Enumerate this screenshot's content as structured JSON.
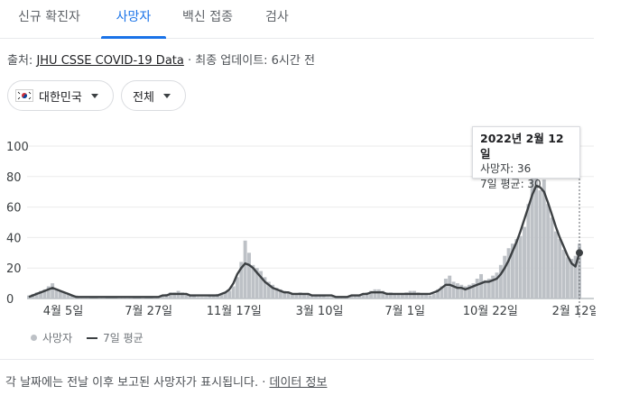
{
  "tabs": [
    {
      "label": "신규 확진자",
      "active": false
    },
    {
      "label": "사망자",
      "active": true
    },
    {
      "label": "백신 접종",
      "active": false
    },
    {
      "label": "검사",
      "active": false
    }
  ],
  "source": {
    "prefix": "출처: ",
    "link": "JHU CSSE COVID-19 Data",
    "suffix": " · 최종 업데이트: 6시간 전"
  },
  "filters": {
    "country": "대한민국",
    "scope": "전체"
  },
  "tooltip": {
    "date": "2022년 2월 12일",
    "deaths": "사망자: 36",
    "avg": "7일 평균: 30"
  },
  "legend": {
    "deaths": "사망자",
    "avg": "7일 평균"
  },
  "footer": {
    "text": "각 날짜에는 전날 이후 보고된 사망자가 표시됩니다. · ",
    "link": "데이터 정보"
  },
  "colors": {
    "accent": "#1a73e8",
    "bars": "#bdc1c6",
    "avg_line": "#3c4043"
  },
  "chart_data": {
    "type": "bar",
    "ylim": [
      0,
      100
    ],
    "y_ticks": [
      "0",
      "20",
      "40",
      "60",
      "80",
      "100"
    ],
    "x_tick_labels": [
      "4월 5일",
      "7월 27일",
      "11월 17일",
      "3월 10일",
      "7월 1일",
      "10월 22일",
      "2월 12일"
    ],
    "series": [
      {
        "name": "사망자",
        "values": [
          2,
          3,
          4,
          5,
          6,
          8,
          10,
          6,
          5,
          4,
          3,
          2,
          2,
          1,
          1,
          1,
          0,
          0,
          1,
          1,
          0,
          0,
          0,
          1,
          1,
          1,
          1,
          0,
          0,
          1,
          0,
          0,
          1,
          1,
          2,
          3,
          4,
          4,
          5,
          4,
          3,
          2,
          2,
          1,
          1,
          1,
          2,
          2,
          3,
          3,
          4,
          5,
          8,
          14,
          24,
          38,
          30,
          22,
          20,
          18,
          14,
          11,
          9,
          7,
          6,
          5,
          4,
          3,
          3,
          4,
          3,
          3,
          2,
          2,
          2,
          2,
          1,
          1,
          1,
          1,
          1,
          1,
          2,
          2,
          2,
          3,
          4,
          5,
          6,
          6,
          5,
          4,
          4,
          3,
          3,
          3,
          4,
          5,
          5,
          4,
          3,
          3,
          2,
          3,
          6,
          8,
          13,
          15,
          11,
          10,
          9,
          8,
          9,
          10,
          13,
          16,
          12,
          13,
          15,
          17,
          22,
          28,
          33,
          36,
          39,
          41,
          47,
          62,
          82,
          96,
          71,
          78,
          62,
          53,
          44,
          39,
          32,
          27,
          26,
          28,
          36
        ]
      },
      {
        "name": "7일 평균",
        "values": [
          1,
          2,
          3,
          4,
          5,
          6,
          7,
          6,
          5,
          4,
          3,
          2,
          1,
          1,
          1,
          1,
          1,
          1,
          1,
          1,
          1,
          1,
          1,
          1,
          1,
          1,
          1,
          1,
          1,
          1,
          1,
          1,
          1,
          1,
          2,
          2,
          3,
          3,
          3,
          3,
          3,
          2,
          2,
          2,
          2,
          2,
          2,
          2,
          2,
          3,
          4,
          6,
          10,
          16,
          20,
          23,
          22,
          20,
          17,
          14,
          11,
          9,
          7,
          6,
          5,
          4,
          4,
          3,
          3,
          3,
          3,
          3,
          2,
          2,
          2,
          2,
          2,
          2,
          1,
          1,
          1,
          1,
          2,
          2,
          2,
          3,
          3,
          4,
          4,
          4,
          4,
          3,
          3,
          3,
          3,
          3,
          3,
          3,
          3,
          3,
          3,
          3,
          3,
          4,
          5,
          7,
          9,
          9,
          8,
          7,
          7,
          6,
          7,
          8,
          9,
          10,
          11,
          11,
          12,
          13,
          16,
          20,
          25,
          31,
          37,
          44,
          52,
          60,
          68,
          74,
          73,
          70,
          63,
          55,
          47,
          40,
          34,
          28,
          23,
          21,
          30
        ]
      }
    ]
  }
}
